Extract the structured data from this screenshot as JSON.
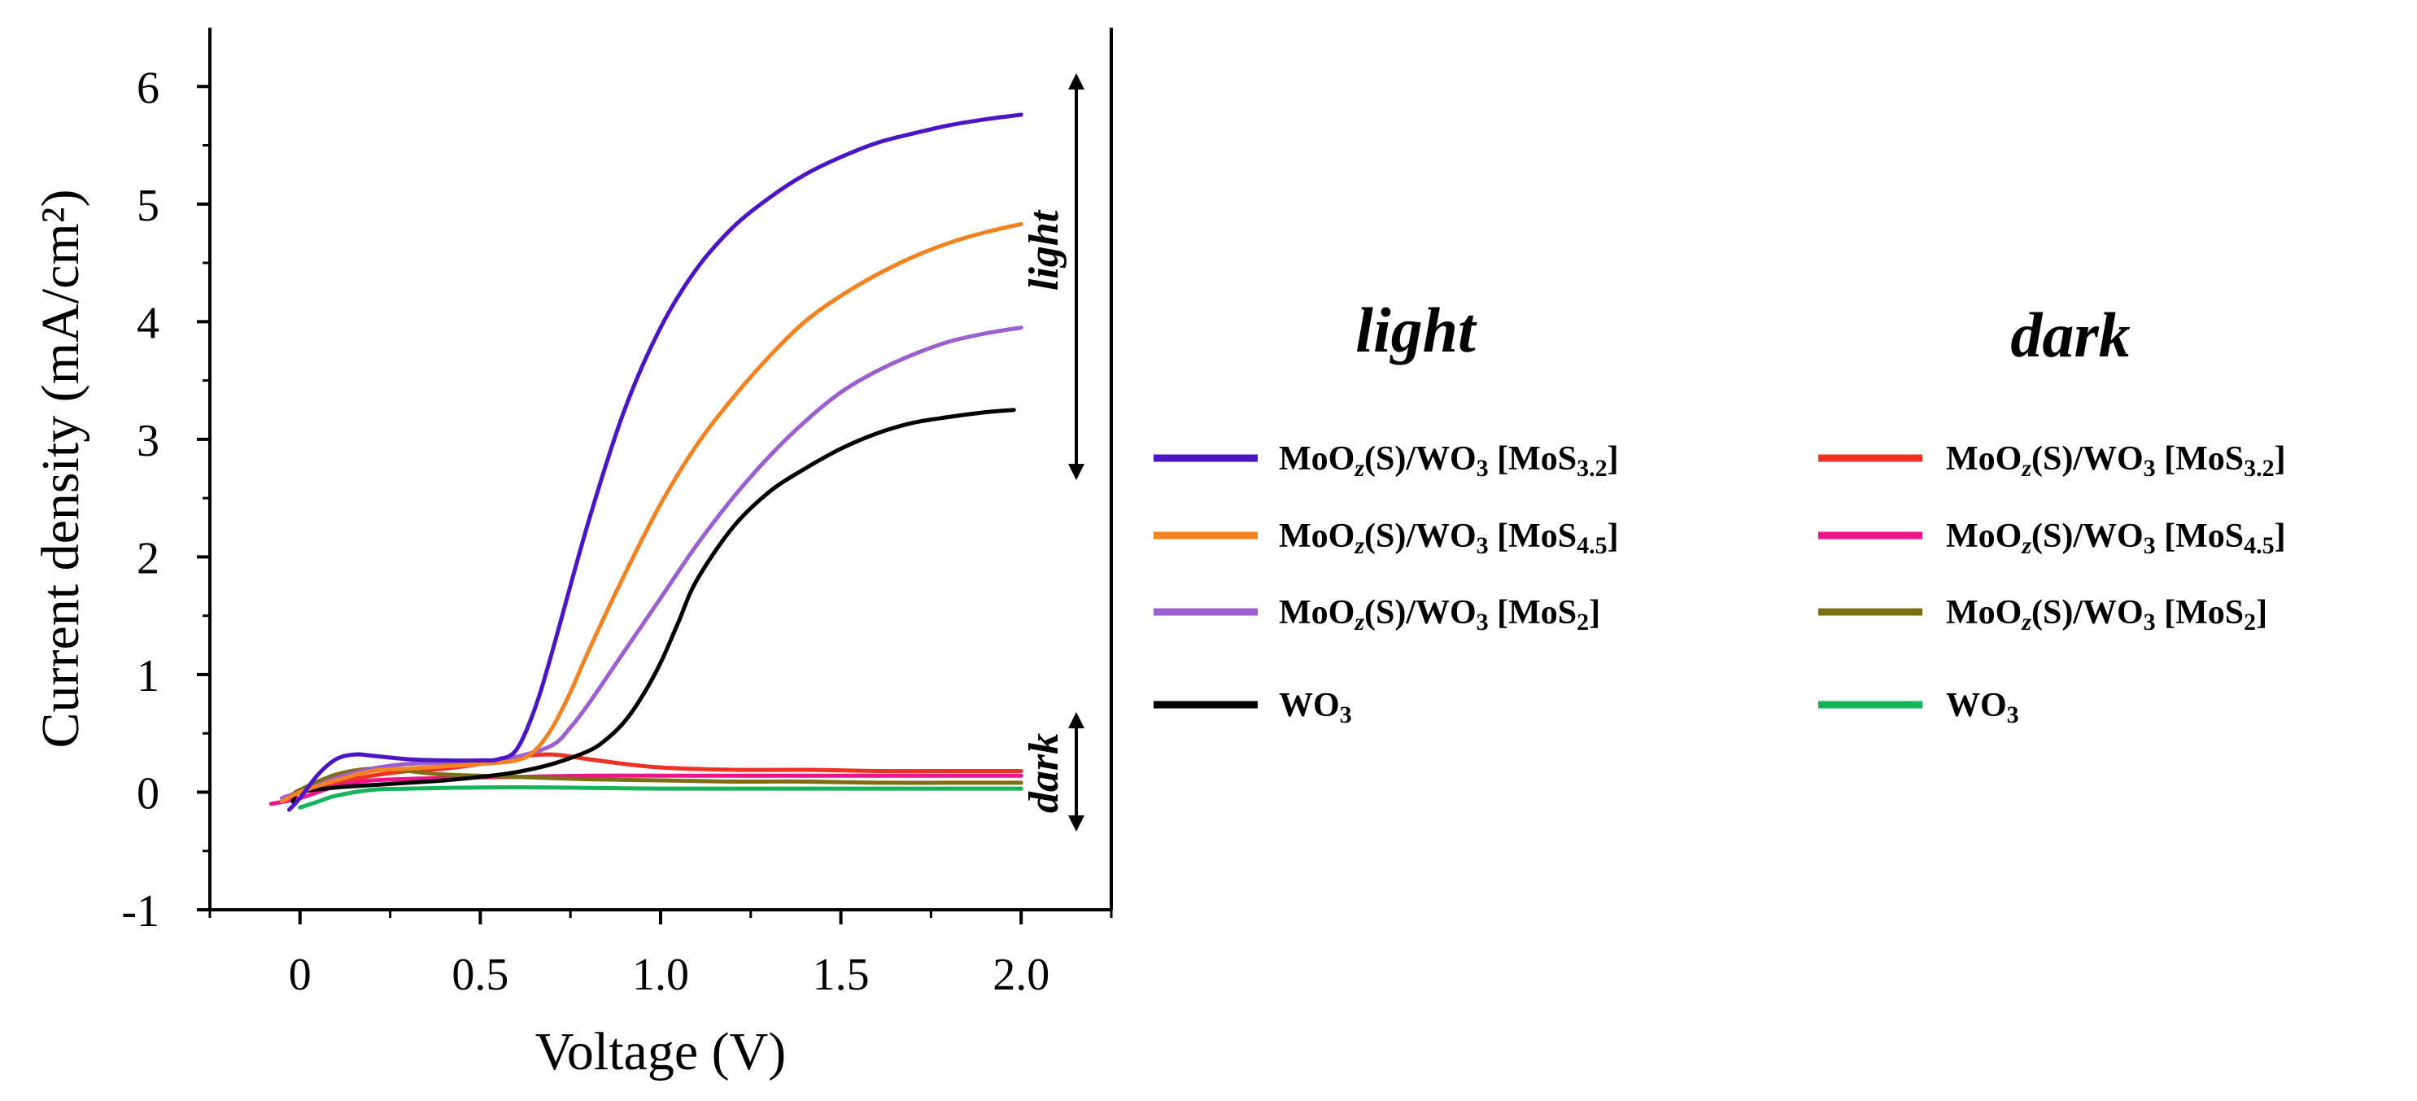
{
  "chart_data": {
    "type": "line",
    "title": "",
    "xlabel": "Voltage (V)",
    "ylabel": "Current density (mA/cm²)",
    "xlim": [
      -0.25,
      2.25
    ],
    "ylim": [
      -1,
      6.5
    ],
    "x_ticks": [
      0,
      0.5,
      1.0,
      1.5,
      2.0
    ],
    "x_tick_labels": [
      "0",
      "0.5",
      "1.0",
      "1.5",
      "2.0"
    ],
    "y_ticks": [
      -1,
      0,
      1,
      2,
      3,
      4,
      5,
      6
    ],
    "y_tick_labels": [
      "-1",
      "0",
      "1",
      "2",
      "3",
      "4",
      "5",
      "6"
    ],
    "grid": false,
    "legend_groups": [
      {
        "header": "light",
        "position": "right-left-column"
      },
      {
        "header": "dark",
        "position": "right-right-column"
      }
    ],
    "annotations": [
      {
        "text": "light",
        "range": [
          2.9,
          6.0
        ],
        "at_x": 2.15
      },
      {
        "text": "dark",
        "range": [
          -0.25,
          0.65
        ],
        "at_x": 2.15
      }
    ],
    "series": [
      {
        "name": "MoOz(S)/WO3 [MoS3.2]",
        "label_main": "MoO",
        "label_sub1": "z",
        "label_mid": "(S)/WO",
        "label_sub2": "3",
        "label_br": " [MoS",
        "label_sub3": "3.2",
        "label_end": "]",
        "group": "light",
        "color": "#4b14c8",
        "x": [
          -0.03,
          0.0,
          0.05,
          0.1,
          0.15,
          0.2,
          0.3,
          0.4,
          0.5,
          0.55,
          0.6,
          0.65,
          0.7,
          0.8,
          0.9,
          1.0,
          1.1,
          1.2,
          1.3,
          1.4,
          1.5,
          1.6,
          1.7,
          1.8,
          1.9,
          2.0
        ],
        "y": [
          -0.15,
          -0.05,
          0.15,
          0.28,
          0.32,
          0.31,
          0.28,
          0.27,
          0.27,
          0.28,
          0.36,
          0.7,
          1.2,
          2.3,
          3.25,
          3.95,
          4.45,
          4.8,
          5.05,
          5.25,
          5.4,
          5.52,
          5.6,
          5.67,
          5.72,
          5.76
        ]
      },
      {
        "name": "MoOz(S)/WO3 [MoS4.5]",
        "label_main": "MoO",
        "label_sub1": "z",
        "label_mid": "(S)/WO",
        "label_sub2": "3",
        "label_br": " [MoS",
        "label_sub3": "4.5",
        "label_end": "]",
        "group": "light",
        "color": "#f5821e",
        "x": [
          -0.05,
          0.0,
          0.1,
          0.2,
          0.3,
          0.4,
          0.5,
          0.6,
          0.65,
          0.7,
          0.75,
          0.8,
          0.9,
          1.0,
          1.1,
          1.2,
          1.3,
          1.4,
          1.5,
          1.6,
          1.7,
          1.8,
          1.9,
          2.0
        ],
        "y": [
          -0.08,
          0.0,
          0.1,
          0.18,
          0.2,
          0.22,
          0.24,
          0.27,
          0.35,
          0.55,
          0.85,
          1.2,
          1.85,
          2.45,
          2.95,
          3.35,
          3.7,
          4.0,
          4.22,
          4.4,
          4.55,
          4.67,
          4.76,
          4.83
        ]
      },
      {
        "name": "MoOz(S)/WO3 [MoS2]",
        "label_main": "MoO",
        "label_sub1": "z",
        "label_mid": "(S)/WO",
        "label_sub2": "3",
        "label_br": " [MoS",
        "label_sub3": "2",
        "label_end": "]",
        "group": "light",
        "color": "#9b5fd2",
        "x": [
          -0.05,
          0.0,
          0.1,
          0.2,
          0.3,
          0.4,
          0.5,
          0.6,
          0.7,
          0.75,
          0.8,
          0.9,
          1.0,
          1.1,
          1.2,
          1.3,
          1.4,
          1.5,
          1.6,
          1.7,
          1.8,
          1.9,
          2.0
        ],
        "y": [
          -0.05,
          0.0,
          0.12,
          0.2,
          0.24,
          0.25,
          0.26,
          0.3,
          0.4,
          0.55,
          0.75,
          1.2,
          1.65,
          2.1,
          2.5,
          2.85,
          3.15,
          3.4,
          3.58,
          3.72,
          3.83,
          3.9,
          3.95
        ]
      },
      {
        "name": "WO3",
        "label_main": "WO",
        "label_sub1": "",
        "label_mid": "",
        "label_sub2": "3",
        "label_br": "",
        "label_sub3": "",
        "label_end": "",
        "group": "light",
        "color": "#000000",
        "x": [
          -0.02,
          0.0,
          0.1,
          0.2,
          0.3,
          0.4,
          0.5,
          0.6,
          0.7,
          0.8,
          0.85,
          0.9,
          0.95,
          1.0,
          1.05,
          1.1,
          1.2,
          1.3,
          1.4,
          1.5,
          1.6,
          1.7,
          1.8,
          1.9,
          1.98
        ],
        "y": [
          -0.08,
          0.0,
          0.04,
          0.06,
          0.08,
          0.1,
          0.13,
          0.17,
          0.24,
          0.35,
          0.45,
          0.6,
          0.82,
          1.1,
          1.45,
          1.8,
          2.25,
          2.55,
          2.75,
          2.92,
          3.05,
          3.14,
          3.19,
          3.23,
          3.25
        ]
      },
      {
        "name": "MoOz(S)/WO3 [MoS3.2]",
        "label_main": "MoO",
        "label_sub1": "z",
        "label_mid": "(S)/WO",
        "label_sub2": "3",
        "label_br": " [MoS",
        "label_sub3": "3.2",
        "label_end": "]",
        "group": "dark",
        "color": "#f03020",
        "x": [
          -0.05,
          0.0,
          0.1,
          0.2,
          0.3,
          0.4,
          0.5,
          0.6,
          0.7,
          0.8,
          0.9,
          1.0,
          1.2,
          1.4,
          1.6,
          1.8,
          2.0
        ],
        "y": [
          -0.05,
          0.0,
          0.08,
          0.14,
          0.18,
          0.2,
          0.24,
          0.3,
          0.32,
          0.28,
          0.24,
          0.21,
          0.19,
          0.19,
          0.18,
          0.18,
          0.18
        ]
      },
      {
        "name": "MoOz(S)/WO3 [MoS4.5]",
        "label_main": "MoO",
        "label_sub1": "z",
        "label_mid": "(S)/WO",
        "label_sub2": "3",
        "label_br": " [MoS",
        "label_sub3": "4.5",
        "label_end": "]",
        "group": "dark",
        "color": "#f0148c",
        "x": [
          -0.08,
          0.0,
          0.1,
          0.2,
          0.4,
          0.6,
          0.8,
          1.0,
          1.2,
          1.4,
          1.6,
          1.8,
          2.0
        ],
        "y": [
          -0.1,
          -0.05,
          0.05,
          0.1,
          0.12,
          0.13,
          0.14,
          0.14,
          0.14,
          0.14,
          0.14,
          0.14,
          0.14
        ]
      },
      {
        "name": "MoOz(S)/WO3 [MoS2]",
        "label_main": "MoO",
        "label_sub1": "z",
        "label_mid": "(S)/WO",
        "label_sub2": "3",
        "label_br": " [MoS",
        "label_sub3": "2",
        "label_end": "]",
        "group": "dark",
        "color": "#7d6e14",
        "x": [
          -0.02,
          0.0,
          0.1,
          0.2,
          0.3,
          0.4,
          0.6,
          0.8,
          1.0,
          1.2,
          1.4,
          1.6,
          1.8,
          2.0
        ],
        "y": [
          -0.02,
          0.02,
          0.15,
          0.2,
          0.18,
          0.15,
          0.13,
          0.11,
          0.1,
          0.09,
          0.09,
          0.08,
          0.08,
          0.08
        ]
      },
      {
        "name": "WO3",
        "label_main": "WO",
        "label_sub1": "",
        "label_mid": "",
        "label_sub2": "3",
        "label_br": "",
        "label_sub3": "",
        "label_end": "",
        "group": "dark",
        "color": "#14b45a",
        "x": [
          0.0,
          0.05,
          0.1,
          0.2,
          0.3,
          0.5,
          0.7,
          1.0,
          1.3,
          1.6,
          2.0
        ],
        "y": [
          -0.13,
          -0.08,
          -0.03,
          0.02,
          0.03,
          0.04,
          0.04,
          0.03,
          0.03,
          0.03,
          0.03
        ]
      }
    ]
  }
}
